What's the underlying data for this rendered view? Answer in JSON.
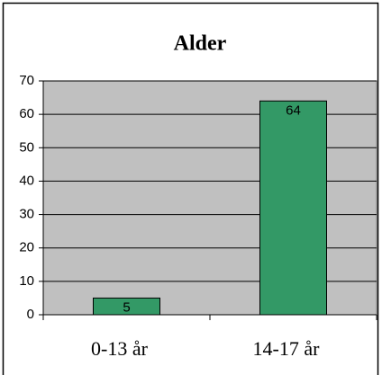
{
  "chart_data": {
    "type": "bar",
    "title": "Alder",
    "categories": [
      "0-13 år",
      "14-17 år"
    ],
    "values": [
      5,
      64
    ],
    "color": "#339966",
    "ylim": [
      0,
      70
    ],
    "yticks": [
      0,
      10,
      20,
      30,
      40,
      50,
      60,
      70
    ],
    "grid": true
  }
}
